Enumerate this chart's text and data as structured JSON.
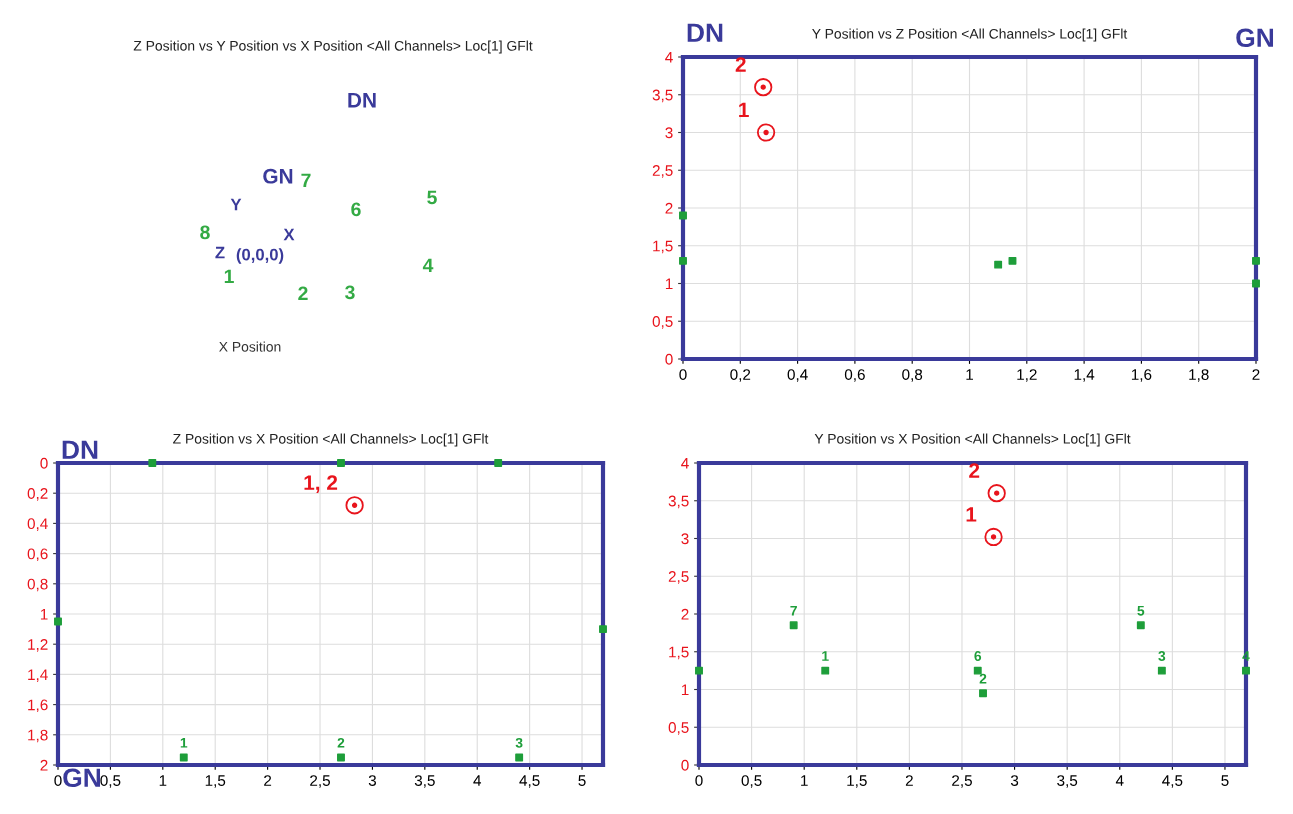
{
  "chart_data": [
    {
      "type": "other",
      "title": "Z Position vs Y Position vs X Position <All Channels> Loc[1] GFlt",
      "annotations": [
        "DN",
        "GN",
        "7",
        "6",
        "5",
        "8",
        "Y",
        "X",
        "Z",
        "(0,0,0)",
        "1",
        "2",
        "3",
        "4",
        "X Position"
      ]
    },
    {
      "type": "scatter",
      "title": "Y Position vs Z Position <All Channels> Loc[1] GFlt",
      "grid": true,
      "xlim": [
        0,
        2
      ],
      "xticks": [
        0,
        {
          "value": 0.2,
          "label": "0,2"
        },
        {
          "value": 0.4,
          "label": "0,4"
        },
        {
          "value": 0.6,
          "label": "0,6"
        },
        {
          "value": 0.8,
          "label": "0,8"
        },
        1,
        {
          "value": 1.2,
          "label": "1,2"
        },
        {
          "value": 1.4,
          "label": "1,4"
        },
        {
          "value": 1.6,
          "label": "1,6"
        },
        {
          "value": 1.8,
          "label": "1,8"
        },
        2
      ],
      "ylim": [
        0,
        4
      ],
      "yticks": [
        0,
        {
          "value": 0.5,
          "label": "0,5"
        },
        1,
        {
          "value": 1.5,
          "label": "1,5"
        },
        2,
        {
          "value": 2.5,
          "label": "2,5"
        },
        3,
        {
          "value": 3.5,
          "label": "3,5"
        },
        4
      ],
      "series": [
        {
          "color": "#1e9e3a",
          "marker": "square",
          "x": [
            0,
            0,
            1.1,
            1.15,
            2,
            2
          ],
          "values": [
            1.9,
            1.3,
            1.25,
            1.3,
            1.3,
            1.0
          ]
        },
        {
          "color": "#e8141c",
          "marker": "circle",
          "x": [
            0.28,
            0.29
          ],
          "values": [
            3.6,
            3.0
          ]
        }
      ],
      "annotations": [
        "DN",
        "GN",
        {
          "text": "2",
          "x": 0.28,
          "y": 3.6
        },
        {
          "text": "1",
          "x": 0.29,
          "y": 3.0
        }
      ]
    },
    {
      "type": "scatter",
      "title": "Z Position vs X Position <All Channels> Loc[1] GFlt",
      "grid": true,
      "xlim": [
        0,
        5.2
      ],
      "xticks": [
        0,
        {
          "value": 0.5,
          "label": "0,5"
        },
        1,
        {
          "value": 1.5,
          "label": "1,5"
        },
        2,
        {
          "value": 2.5,
          "label": "2,5"
        },
        3,
        {
          "value": 3.5,
          "label": "3,5"
        },
        4,
        {
          "value": 4.5,
          "label": "4,5"
        },
        5
      ],
      "ylim": [
        2,
        0
      ],
      "yticks": [
        0,
        {
          "value": 0.2,
          "label": "0,2"
        },
        {
          "value": 0.4,
          "label": "0,4"
        },
        {
          "value": 0.6,
          "label": "0,6"
        },
        {
          "value": 0.8,
          "label": "0,8"
        },
        1,
        {
          "value": 1.2,
          "label": "1,2"
        },
        {
          "value": 1.4,
          "label": "1,4"
        },
        {
          "value": 1.6,
          "label": "1,6"
        },
        {
          "value": 1.8,
          "label": "1,8"
        },
        2
      ],
      "series": [
        {
          "color": "#1e9e3a",
          "marker": "square",
          "x": [
            0.9,
            2.7,
            4.2,
            0,
            5.2,
            1.2,
            2.7,
            4.4
          ],
          "values": [
            0,
            0,
            0,
            1.05,
            1.1,
            1.95,
            1.95,
            1.95
          ]
        },
        {
          "color": "#e8141c",
          "marker": "circle",
          "x": [
            2.83
          ],
          "values": [
            0.28
          ]
        }
      ],
      "annotations": [
        "DN",
        "GN",
        {
          "text": "1, 2",
          "x": 2.83,
          "y": 0.28
        },
        {
          "text": "1",
          "x": 1.2,
          "y": 1.95
        },
        {
          "text": "2",
          "x": 2.7,
          "y": 1.95
        },
        {
          "text": "3",
          "x": 4.4,
          "y": 1.95
        }
      ]
    },
    {
      "type": "scatter",
      "title": "Y Position vs X Position <All Channels> Loc[1] GFlt",
      "grid": true,
      "xlim": [
        0,
        5.2
      ],
      "xticks": [
        0,
        {
          "value": 0.5,
          "label": "0,5"
        },
        1,
        {
          "value": 1.5,
          "label": "1,5"
        },
        2,
        {
          "value": 2.5,
          "label": "2,5"
        },
        3,
        {
          "value": 3.5,
          "label": "3,5"
        },
        4,
        {
          "value": 4.5,
          "label": "4,5"
        },
        5
      ],
      "ylim": [
        0,
        4
      ],
      "yticks": [
        0,
        {
          "value": 0.5,
          "label": "0,5"
        },
        1,
        {
          "value": 1.5,
          "label": "1,5"
        },
        2,
        {
          "value": 2.5,
          "label": "2,5"
        },
        3,
        {
          "value": 3.5,
          "label": "3,5"
        },
        4
      ],
      "series": [
        {
          "color": "#1e9e3a",
          "marker": "square",
          "x": [
            0,
            0.9,
            1.2,
            2.65,
            2.7,
            4.2,
            4.4,
            5.2
          ],
          "values": [
            1.25,
            1.85,
            1.25,
            1.25,
            0.95,
            1.85,
            1.25,
            1.25
          ]
        },
        {
          "color": "#e8141c",
          "marker": "circle",
          "x": [
            2.83,
            2.8
          ],
          "values": [
            3.6,
            3.02
          ]
        }
      ],
      "annotations": [
        {
          "text": "2",
          "x": 2.83,
          "y": 3.6
        },
        {
          "text": "1",
          "x": 2.8,
          "y": 3.02
        },
        {
          "text": "7",
          "x": 0.9,
          "y": 1.85
        },
        {
          "text": "1",
          "x": 1.2,
          "y": 1.25
        },
        {
          "text": "6",
          "x": 2.65,
          "y": 1.25
        },
        {
          "text": "2",
          "x": 2.7,
          "y": 0.95
        },
        {
          "text": "5",
          "x": 4.2,
          "y": 1.85
        },
        {
          "text": "3",
          "x": 4.4,
          "y": 1.25
        },
        {
          "text": "4",
          "x": 5.2,
          "y": 1.25
        }
      ]
    }
  ]
}
